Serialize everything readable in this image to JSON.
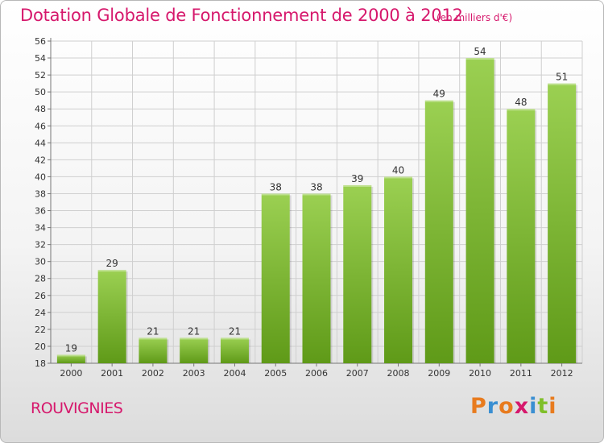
{
  "title": "Dotation Globale de Fonctionnement de 2000 à 2012",
  "unit_label": "(en milliers d'€)",
  "commune": "ROUVIGNIES",
  "brand": {
    "letters": [
      "P",
      "r",
      "o",
      "x",
      "i",
      "t",
      "i"
    ],
    "colors": [
      "#e87b1e",
      "#3a8fd2",
      "#e87b1e",
      "#d6186c",
      "#3a8fd2",
      "#7fbf2a",
      "#e87b1e"
    ]
  },
  "colors": {
    "accent": "#d6186c",
    "bar_top": "#9bd052",
    "bar_bottom": "#5f9a18",
    "grid": "#cfcfcf"
  },
  "chart_data": {
    "type": "bar",
    "categories": [
      "2000",
      "2001",
      "2002",
      "2003",
      "2004",
      "2005",
      "2006",
      "2007",
      "2008",
      "2009",
      "2010",
      "2011",
      "2012"
    ],
    "values": [
      19,
      29,
      21,
      21,
      21,
      38,
      38,
      39,
      40,
      49,
      54,
      48,
      51
    ],
    "ylim": [
      18,
      56
    ],
    "yticks": [
      18,
      20,
      22,
      24,
      26,
      28,
      30,
      32,
      34,
      36,
      38,
      40,
      42,
      44,
      46,
      48,
      50,
      52,
      54,
      56
    ],
    "grid": true,
    "data_labels": true
  }
}
